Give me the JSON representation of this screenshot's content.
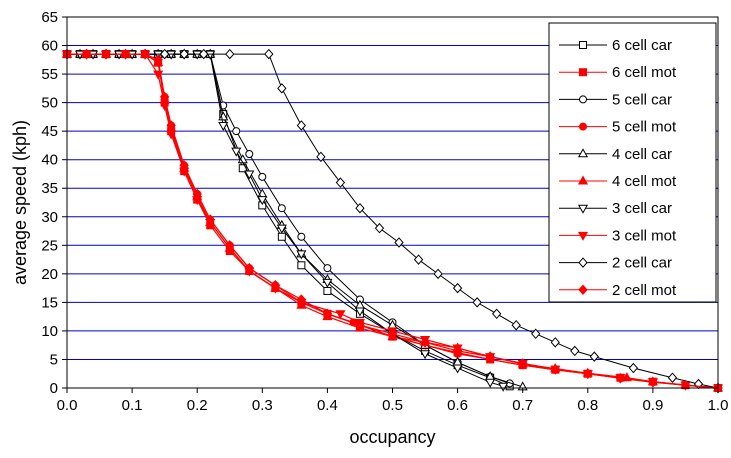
{
  "chart_data": {
    "type": "line",
    "title": "",
    "xlabel": "occupancy",
    "ylabel": "average speed (kph)",
    "xlim": [
      0.0,
      1.0
    ],
    "ylim": [
      0,
      65
    ],
    "xticks": [
      "0.0",
      "0.1",
      "0.2",
      "0.3",
      "0.4",
      "0.5",
      "0.6",
      "0.7",
      "0.8",
      "0.9",
      "1.0"
    ],
    "yticks": [
      "0",
      "5",
      "10",
      "15",
      "20",
      "25",
      "30",
      "35",
      "40",
      "45",
      "50",
      "55",
      "60",
      "65"
    ],
    "grid": "horizontal",
    "grid_color": "#0000c8",
    "legend_position": "top-right",
    "series": [
      {
        "name": "6 cell car",
        "color": "#000000",
        "marker": "square-open",
        "x": [
          0.0,
          0.02,
          0.04,
          0.06,
          0.08,
          0.1,
          0.12,
          0.14,
          0.16,
          0.18,
          0.2,
          0.22,
          0.24,
          0.27,
          0.3,
          0.33,
          0.36,
          0.4,
          0.45,
          0.5,
          0.55,
          0.6,
          0.65,
          0.68
        ],
        "y": [
          58.5,
          58.5,
          58.5,
          58.5,
          58.5,
          58.5,
          58.5,
          58.5,
          58.5,
          58.5,
          58.5,
          58.5,
          48.0,
          38.5,
          32.0,
          26.5,
          21.5,
          17.0,
          13.0,
          9.5,
          6.5,
          4.0,
          1.8,
          0.3
        ]
      },
      {
        "name": "6 cell mot",
        "color": "#ff0000",
        "marker": "square-filled",
        "x": [
          0.0,
          0.03,
          0.06,
          0.09,
          0.12,
          0.14,
          0.15,
          0.16,
          0.18,
          0.2,
          0.22,
          0.25,
          0.28,
          0.32,
          0.36,
          0.4,
          0.45,
          0.5,
          0.55,
          0.6,
          0.65,
          0.7,
          0.75,
          0.8,
          0.85,
          0.9,
          0.95,
          1.0
        ],
        "y": [
          58.5,
          58.5,
          58.5,
          58.5,
          58.5,
          57.0,
          50.0,
          45.0,
          38.0,
          33.0,
          28.5,
          24.0,
          20.5,
          17.5,
          15.0,
          13.0,
          11.0,
          9.0,
          7.5,
          6.2,
          5.0,
          4.0,
          3.2,
          2.5,
          1.8,
          1.1,
          0.5,
          0.0
        ]
      },
      {
        "name": "5 cell car",
        "color": "#000000",
        "marker": "circle-open",
        "x": [
          0.0,
          0.02,
          0.04,
          0.06,
          0.08,
          0.1,
          0.12,
          0.14,
          0.16,
          0.18,
          0.2,
          0.22,
          0.24,
          0.26,
          0.28,
          0.3,
          0.33,
          0.36,
          0.4,
          0.45,
          0.5,
          0.55,
          0.6,
          0.65,
          0.68
        ],
        "y": [
          58.5,
          58.5,
          58.5,
          58.5,
          58.5,
          58.5,
          58.5,
          58.5,
          58.5,
          58.5,
          58.5,
          58.5,
          49.5,
          45.0,
          41.0,
          37.0,
          31.5,
          26.5,
          21.0,
          15.5,
          11.5,
          7.5,
          4.5,
          2.0,
          0.8
        ]
      },
      {
        "name": "5 cell mot",
        "color": "#ff0000",
        "marker": "circle-filled",
        "x": [
          0.0,
          0.03,
          0.06,
          0.09,
          0.12,
          0.14,
          0.15,
          0.16,
          0.18,
          0.2,
          0.22,
          0.25,
          0.28,
          0.32,
          0.36,
          0.4,
          0.44,
          0.5,
          0.55,
          0.6,
          0.65,
          0.7,
          0.75,
          0.8,
          0.85,
          0.9,
          0.95,
          1.0
        ],
        "y": [
          58.5,
          58.5,
          58.5,
          58.5,
          58.5,
          57.0,
          51.0,
          46.0,
          39.0,
          34.0,
          29.5,
          25.0,
          21.0,
          18.0,
          15.0,
          13.0,
          11.5,
          9.0,
          7.5,
          6.0,
          5.0,
          4.0,
          3.2,
          2.5,
          1.8,
          1.1,
          0.5,
          0.0
        ]
      },
      {
        "name": "4 cell car",
        "color": "#000000",
        "marker": "triangle-up-open",
        "x": [
          0.0,
          0.02,
          0.04,
          0.06,
          0.08,
          0.1,
          0.12,
          0.14,
          0.16,
          0.18,
          0.2,
          0.22,
          0.24,
          0.27,
          0.3,
          0.33,
          0.36,
          0.4,
          0.45,
          0.5,
          0.55,
          0.6,
          0.65,
          0.7
        ],
        "y": [
          58.5,
          58.5,
          58.5,
          58.5,
          58.5,
          58.5,
          58.5,
          58.5,
          58.5,
          58.5,
          58.5,
          58.5,
          47.5,
          40.0,
          34.0,
          28.5,
          23.5,
          19.0,
          14.5,
          11.0,
          7.5,
          4.5,
          2.0,
          0.2
        ]
      },
      {
        "name": "4 cell mot",
        "color": "#ff0000",
        "marker": "triangle-up-filled",
        "x": [
          0.0,
          0.03,
          0.06,
          0.09,
          0.12,
          0.14,
          0.15,
          0.16,
          0.18,
          0.2,
          0.22,
          0.25,
          0.28,
          0.32,
          0.36,
          0.4,
          0.45,
          0.5,
          0.55,
          0.6,
          0.65,
          0.7,
          0.75,
          0.8,
          0.86,
          0.9,
          0.95,
          1.0
        ],
        "y": [
          58.5,
          58.5,
          58.5,
          58.5,
          58.5,
          57.0,
          50.5,
          45.5,
          38.5,
          33.5,
          29.0,
          24.5,
          20.5,
          17.5,
          14.5,
          12.5,
          10.5,
          9.0,
          8.0,
          7.0,
          5.5,
          4.2,
          3.4,
          2.6,
          1.8,
          1.1,
          0.5,
          0.0
        ]
      },
      {
        "name": "3 cell car",
        "color": "#000000",
        "marker": "triangle-down-open",
        "x": [
          0.0,
          0.02,
          0.04,
          0.06,
          0.08,
          0.1,
          0.12,
          0.14,
          0.16,
          0.18,
          0.2,
          0.22,
          0.24,
          0.26,
          0.28,
          0.3,
          0.33,
          0.36,
          0.4,
          0.45,
          0.5,
          0.55,
          0.6,
          0.65,
          0.67
        ],
        "y": [
          58.5,
          58.5,
          58.5,
          58.5,
          58.5,
          58.5,
          58.5,
          58.5,
          58.5,
          58.5,
          58.5,
          58.5,
          46.0,
          41.5,
          37.5,
          33.0,
          28.0,
          23.5,
          18.5,
          13.5,
          9.5,
          6.0,
          3.5,
          1.0,
          0.3
        ]
      },
      {
        "name": "3 cell mot",
        "color": "#ff0000",
        "marker": "triangle-down-filled",
        "x": [
          0.0,
          0.03,
          0.06,
          0.09,
          0.12,
          0.14,
          0.15,
          0.16,
          0.18,
          0.2,
          0.22,
          0.25,
          0.28,
          0.32,
          0.36,
          0.42,
          0.45,
          0.5,
          0.55,
          0.6,
          0.65,
          0.7,
          0.75,
          0.8,
          0.85,
          0.9,
          0.95,
          1.0
        ],
        "y": [
          58.5,
          58.5,
          58.5,
          58.5,
          58.5,
          55.0,
          49.5,
          44.5,
          38.0,
          33.0,
          29.0,
          24.5,
          20.5,
          17.5,
          15.0,
          13.0,
          11.5,
          10.0,
          8.5,
          7.0,
          5.5,
          4.3,
          3.3,
          2.5,
          1.8,
          1.1,
          0.5,
          0.0
        ]
      },
      {
        "name": "2 cell car",
        "color": "#000000",
        "marker": "diamond-open",
        "x": [
          0.0,
          0.03,
          0.06,
          0.09,
          0.12,
          0.15,
          0.18,
          0.21,
          0.25,
          0.31,
          0.33,
          0.36,
          0.39,
          0.42,
          0.45,
          0.48,
          0.51,
          0.54,
          0.57,
          0.6,
          0.63,
          0.66,
          0.69,
          0.72,
          0.75,
          0.78,
          0.81,
          0.87,
          0.93,
          0.97,
          1.0
        ],
        "y": [
          58.5,
          58.5,
          58.5,
          58.5,
          58.5,
          58.5,
          58.5,
          58.5,
          58.5,
          58.5,
          52.5,
          46.0,
          40.5,
          36.0,
          31.5,
          28.0,
          25.5,
          22.5,
          20.0,
          17.5,
          15.0,
          13.0,
          11.0,
          9.5,
          8.0,
          6.5,
          5.5,
          3.5,
          1.8,
          0.7,
          0.0
        ]
      },
      {
        "name": "2 cell mot",
        "color": "#ff0000",
        "marker": "diamond-filled",
        "x": [
          0.0,
          0.03,
          0.06,
          0.09,
          0.12,
          0.14,
          0.15,
          0.16,
          0.18,
          0.2,
          0.22,
          0.25,
          0.28,
          0.32,
          0.36,
          0.4,
          0.45,
          0.5,
          0.55,
          0.6,
          0.65,
          0.7,
          0.75,
          0.8,
          0.85,
          0.9,
          0.95,
          1.0
        ],
        "y": [
          58.5,
          58.5,
          58.5,
          58.5,
          58.5,
          57.5,
          51.0,
          46.0,
          39.0,
          34.0,
          29.5,
          25.0,
          21.0,
          18.0,
          15.5,
          13.0,
          11.0,
          9.5,
          8.0,
          6.5,
          5.5,
          4.3,
          3.3,
          2.5,
          1.7,
          1.0,
          0.5,
          0.0
        ]
      }
    ]
  }
}
